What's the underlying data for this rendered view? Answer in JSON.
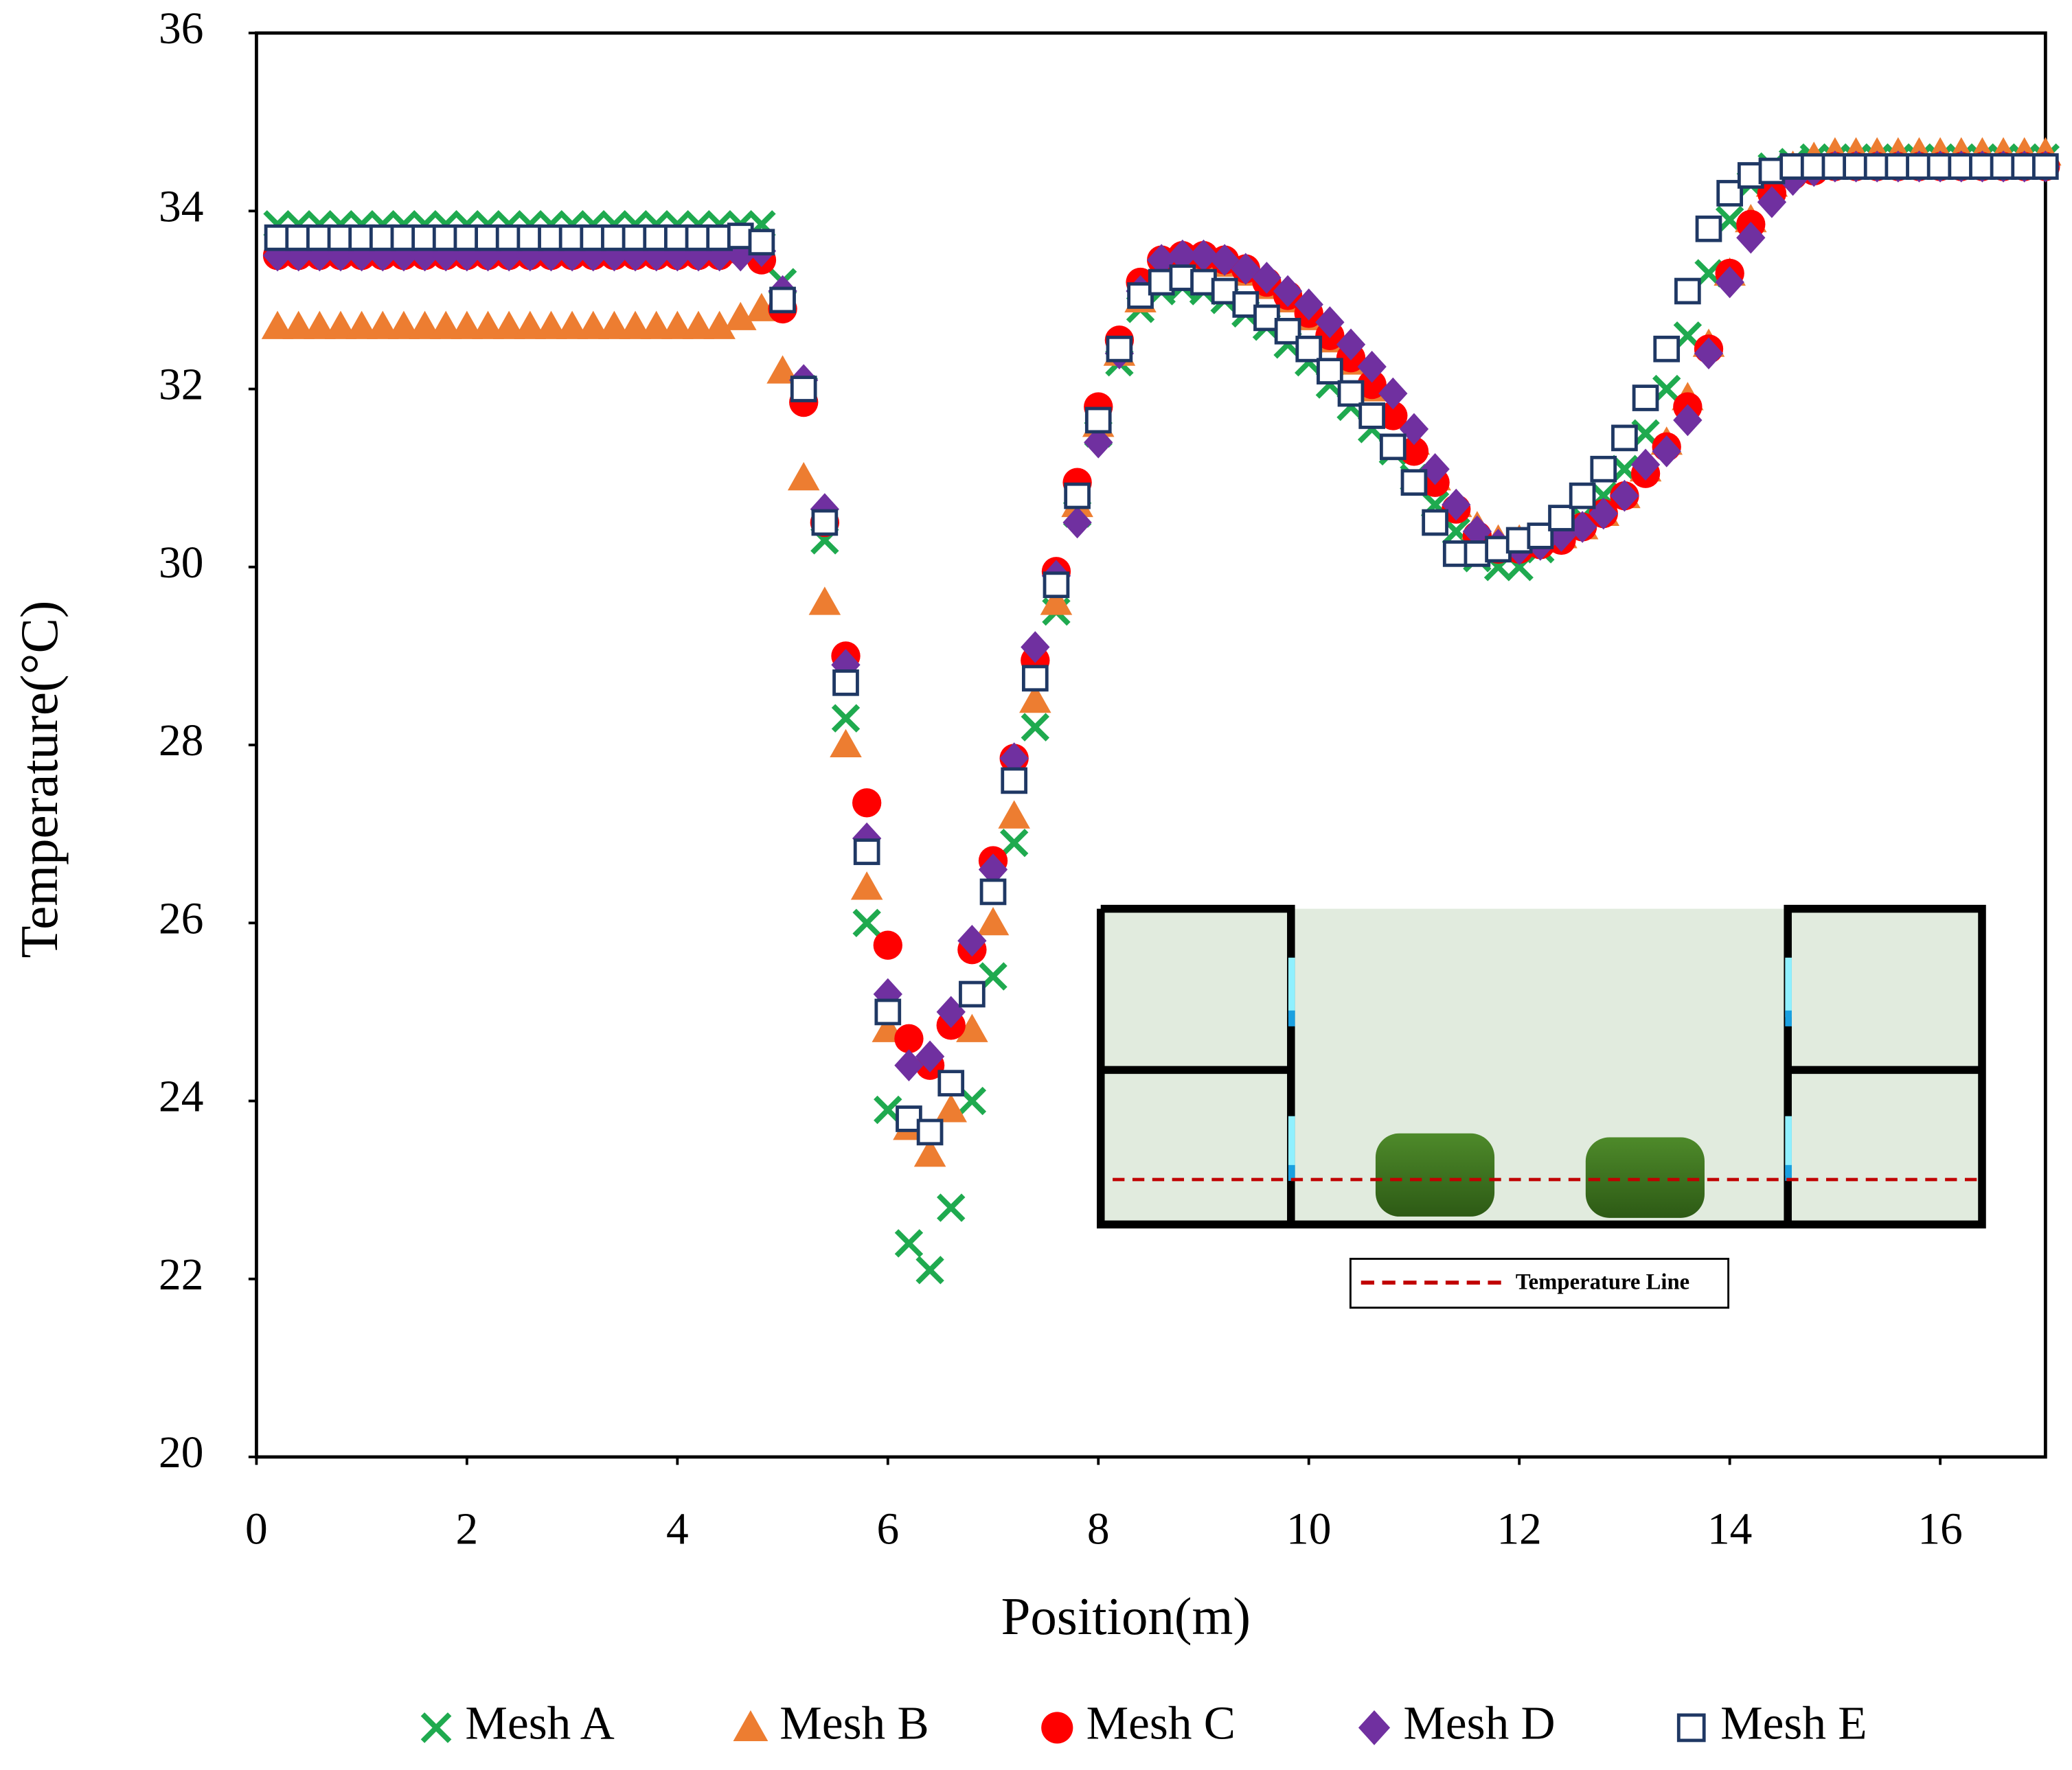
{
  "chart_data": {
    "type": "scatter",
    "xlabel": "Position(m)",
    "ylabel": "Temperature(°C)",
    "xlim": [
      0,
      17
    ],
    "ylim": [
      20,
      36
    ],
    "xticks": [
      0,
      2,
      4,
      6,
      8,
      10,
      12,
      14,
      16
    ],
    "yticks": [
      20,
      22,
      24,
      26,
      28,
      30,
      32,
      34,
      36
    ],
    "inset_legend": "Temperature Line",
    "x": [
      0.2,
      0.4,
      0.6,
      0.8,
      1.0,
      1.2,
      1.4,
      1.6,
      1.8,
      2.0,
      2.2,
      2.4,
      2.6,
      2.8,
      3.0,
      3.2,
      3.4,
      3.6,
      3.8,
      4.0,
      4.2,
      4.4,
      4.6,
      4.8,
      5.0,
      5.2,
      5.4,
      5.6,
      5.8,
      6.0,
      6.2,
      6.4,
      6.6,
      6.8,
      7.0,
      7.2,
      7.4,
      7.6,
      7.8,
      8.0,
      8.2,
      8.4,
      8.6,
      8.8,
      9.0,
      9.2,
      9.4,
      9.6,
      9.8,
      10.0,
      10.2,
      10.4,
      10.6,
      10.8,
      11.0,
      11.2,
      11.4,
      11.6,
      11.8,
      12.0,
      12.2,
      12.4,
      12.6,
      12.8,
      13.0,
      13.2,
      13.4,
      13.6,
      13.8,
      14.0,
      14.2,
      14.4,
      14.6,
      14.8,
      15.0,
      15.2,
      15.4,
      15.6,
      15.8,
      16.0,
      16.2,
      16.4,
      16.6,
      16.8,
      17.0
    ],
    "series": [
      {
        "name": "Mesh A",
        "color": "#1faa4f",
        "marker": "x",
        "values": [
          33.85,
          33.85,
          33.85,
          33.85,
          33.85,
          33.85,
          33.85,
          33.85,
          33.85,
          33.85,
          33.85,
          33.85,
          33.85,
          33.85,
          33.85,
          33.85,
          33.85,
          33.85,
          33.85,
          33.85,
          33.85,
          33.85,
          33.85,
          33.85,
          33.2,
          32.0,
          30.3,
          28.3,
          26.0,
          23.9,
          22.4,
          22.1,
          22.8,
          24.0,
          25.4,
          26.9,
          28.2,
          29.5,
          30.6,
          31.5,
          32.3,
          32.9,
          33.1,
          33.15,
          33.1,
          33.0,
          32.85,
          32.7,
          32.5,
          32.3,
          32.05,
          31.8,
          31.55,
          31.3,
          31.0,
          30.7,
          30.4,
          30.1,
          30.0,
          30.0,
          30.2,
          30.35,
          30.55,
          30.8,
          31.1,
          31.5,
          32.0,
          32.6,
          33.3,
          33.9,
          34.3,
          34.5,
          34.55,
          34.6,
          34.6,
          34.6,
          34.6,
          34.6,
          34.6,
          34.6,
          34.6,
          34.6,
          34.6,
          34.6,
          34.6
        ]
      },
      {
        "name": "Mesh B",
        "color": "#ed7d31",
        "marker": "triangle",
        "values": [
          32.7,
          32.7,
          32.7,
          32.7,
          32.7,
          32.7,
          32.7,
          32.7,
          32.7,
          32.7,
          32.7,
          32.7,
          32.7,
          32.7,
          32.7,
          32.7,
          32.7,
          32.7,
          32.7,
          32.7,
          32.7,
          32.7,
          32.8,
          32.9,
          32.2,
          31.0,
          29.6,
          28.0,
          26.4,
          24.8,
          23.7,
          23.4,
          23.9,
          24.8,
          26.0,
          27.2,
          28.5,
          29.6,
          30.7,
          31.6,
          32.4,
          33.0,
          33.3,
          33.45,
          33.45,
          33.4,
          33.3,
          33.15,
          33.0,
          32.8,
          32.55,
          32.3,
          32.0,
          31.7,
          31.4,
          31.0,
          30.7,
          30.45,
          30.3,
          30.3,
          30.3,
          30.35,
          30.45,
          30.6,
          30.8,
          31.1,
          31.4,
          31.9,
          32.5,
          33.3,
          33.9,
          34.3,
          34.5,
          34.6,
          34.65,
          34.65,
          34.65,
          34.65,
          34.65,
          34.65,
          34.65,
          34.65,
          34.65,
          34.65,
          34.65
        ]
      },
      {
        "name": "Mesh C",
        "color": "#ff0000",
        "marker": "circle",
        "values": [
          33.5,
          33.5,
          33.5,
          33.5,
          33.5,
          33.5,
          33.5,
          33.5,
          33.5,
          33.5,
          33.5,
          33.5,
          33.5,
          33.5,
          33.5,
          33.5,
          33.5,
          33.5,
          33.5,
          33.5,
          33.5,
          33.5,
          33.55,
          33.45,
          32.9,
          31.85,
          30.5,
          29.0,
          27.35,
          25.75,
          24.7,
          24.4,
          24.85,
          25.7,
          26.7,
          27.85,
          28.95,
          29.95,
          30.95,
          31.8,
          32.55,
          33.2,
          33.45,
          33.5,
          33.5,
          33.45,
          33.35,
          33.2,
          33.05,
          32.85,
          32.6,
          32.35,
          32.05,
          31.7,
          31.3,
          30.95,
          30.65,
          30.35,
          30.2,
          30.2,
          30.25,
          30.3,
          30.45,
          30.6,
          30.8,
          31.05,
          31.35,
          31.8,
          32.45,
          33.3,
          33.85,
          34.2,
          34.4,
          34.45,
          34.5,
          34.5,
          34.5,
          34.5,
          34.5,
          34.5,
          34.5,
          34.5,
          34.5,
          34.5,
          34.5
        ]
      },
      {
        "name": "Mesh D",
        "color": "#7030a0",
        "marker": "diamond",
        "values": [
          33.5,
          33.5,
          33.5,
          33.5,
          33.5,
          33.5,
          33.5,
          33.5,
          33.5,
          33.5,
          33.5,
          33.5,
          33.5,
          33.5,
          33.5,
          33.5,
          33.5,
          33.5,
          33.5,
          33.5,
          33.5,
          33.5,
          33.5,
          33.55,
          33.1,
          32.1,
          30.65,
          28.9,
          26.95,
          25.2,
          24.4,
          24.5,
          25.0,
          25.8,
          26.6,
          27.85,
          29.1,
          29.9,
          30.5,
          31.4,
          32.4,
          33.1,
          33.45,
          33.5,
          33.5,
          33.45,
          33.35,
          33.25,
          33.1,
          32.95,
          32.75,
          32.5,
          32.25,
          31.95,
          31.55,
          31.1,
          30.7,
          30.4,
          30.25,
          30.2,
          30.25,
          30.35,
          30.45,
          30.6,
          30.8,
          31.15,
          31.3,
          31.65,
          32.4,
          33.2,
          33.7,
          34.1,
          34.35,
          34.45,
          34.5,
          34.5,
          34.5,
          34.5,
          34.5,
          34.5,
          34.5,
          34.5,
          34.5,
          34.5,
          34.5
        ]
      },
      {
        "name": "Mesh E",
        "color": "#1f3864",
        "marker": "square",
        "values": [
          33.7,
          33.7,
          33.7,
          33.7,
          33.7,
          33.7,
          33.7,
          33.7,
          33.7,
          33.7,
          33.7,
          33.7,
          33.7,
          33.7,
          33.7,
          33.7,
          33.7,
          33.7,
          33.7,
          33.7,
          33.7,
          33.7,
          33.72,
          33.65,
          33.0,
          32.0,
          30.5,
          28.7,
          26.8,
          25.0,
          23.8,
          23.65,
          24.2,
          25.2,
          26.35,
          27.6,
          28.75,
          29.8,
          30.8,
          31.65,
          32.45,
          33.05,
          33.2,
          33.25,
          33.2,
          33.1,
          32.95,
          32.8,
          32.65,
          32.45,
          32.2,
          31.95,
          31.7,
          31.35,
          30.95,
          30.5,
          30.15,
          30.15,
          30.2,
          30.3,
          30.35,
          30.55,
          30.8,
          31.1,
          31.45,
          31.9,
          32.45,
          33.1,
          33.8,
          34.2,
          34.4,
          34.45,
          34.5,
          34.5,
          34.5,
          34.5,
          34.5,
          34.5,
          34.5,
          34.5,
          34.5,
          34.5,
          34.5,
          34.5,
          34.5
        ]
      }
    ]
  }
}
